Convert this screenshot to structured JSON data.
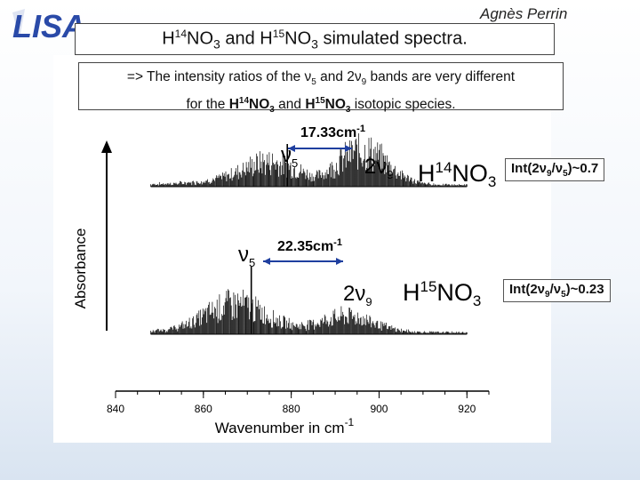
{
  "header": {
    "logo_text": "LISA",
    "author": "Agnès Perrin",
    "title_parts": [
      "H",
      "14",
      "NO",
      "3",
      " and H",
      "15",
      "NO",
      "3",
      " simulated spectra."
    ]
  },
  "note": {
    "line1": "=> The intensity ratios of the ν5 and 2ν9 bands are very different",
    "line2": "for the H14NO3 and H15NO3 isotopic species."
  },
  "upper": {
    "separation": "17.33",
    "unit": "cm-1",
    "species": "H14NO3",
    "ratio": "Int(2ν9/ν5)~0.7",
    "band_a": "ν5",
    "band_b": "2ν9"
  },
  "lower": {
    "separation": "22.35",
    "unit": "cm-1",
    "species": "H15NO3",
    "ratio": "Int(2ν9/ν5)~0.23",
    "band_a": "ν5",
    "band_b": "2ν9"
  },
  "chart_data": {
    "type": "line",
    "xlabel": "Wavenumber in cm-1",
    "ylabel": "Absorbance",
    "xlim": [
      840,
      925
    ],
    "xticks": [
      840,
      860,
      880,
      900,
      920
    ],
    "series": [
      {
        "name": "H14NO3",
        "v5_peak_x": 879.1,
        "2v9_peak_x": 896.4,
        "relative_intensity_2v9_to_v5": 0.7
      },
      {
        "name": "H15NO3",
        "v5_peak_x": 870.9,
        "2v9_peak_x": 893.3,
        "relative_intensity_2v9_to_v5": 0.23
      }
    ]
  },
  "colors": {
    "arrow_blue": "#1f3f9f",
    "logo_blue": "#2a4aa8",
    "spectrum": "#000000"
  }
}
